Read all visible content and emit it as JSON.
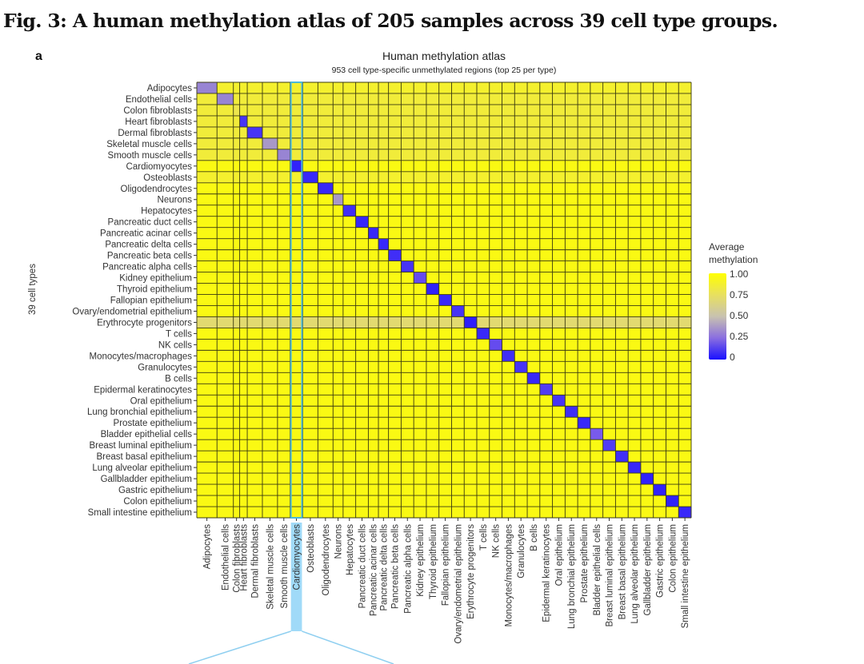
{
  "figure": {
    "title": "Fig. 3: A human methylation atlas of 205 samples across 39 cell type groups.",
    "panel_label": "a"
  },
  "chart_data": {
    "type": "heatmap",
    "title": "Human methylation atlas",
    "subtitle": "953 cell type-specific unmethylated regions (top 25 per type)",
    "ylabel": "39 cell types",
    "xlabel": "",
    "highlighted_column": "Cardiomyocytes",
    "highlight_color": "#4ab8d8",
    "rows": [
      "Adipocytes",
      "Endothelial cells",
      "Colon fibroblasts",
      "Heart fibroblasts",
      "Dermal fibroblasts",
      "Skeletal muscle cells",
      "Smooth muscle cells",
      "Cardiomyocytes",
      "Osteoblasts",
      "Oligodendrocytes",
      "Neurons",
      "Hepatocytes",
      "Pancreatic duct cells",
      "Pancreatic acinar cells",
      "Pancreatic delta cells",
      "Pancreatic beta cells",
      "Pancreatic alpha cells",
      "Kidney epithelium",
      "Thyroid epithelium",
      "Fallopian epithelium",
      "Ovary/endometrial epithelium",
      "Erythrocyte progenitors",
      "T cells",
      "NK cells",
      "Monocytes/macrophages",
      "Granulocytes",
      "B cells",
      "Epidermal keratinocytes",
      "Oral epithelium",
      "Lung bronchial epithelium",
      "Prostate epithelium",
      "Bladder epithelial cells",
      "Breast luminal epithelium",
      "Breast basal epithelium",
      "Lung alveolar epithelium",
      "Gallbladder epithelium",
      "Gastric epithelium",
      "Colon epithelium",
      "Small intestine epithelium"
    ],
    "columns": [
      "Adipocytes",
      "Endothelial cells",
      "Colon fibroblasts",
      "Heart fibroblasts",
      "Dermal fibroblasts",
      "Skeletal muscle cells",
      "Smooth muscle cells",
      "Cardiomyocytes",
      "Osteoblasts",
      "Oligodendrocytes",
      "Neurons",
      "Hepatocytes",
      "Pancreatic duct cells",
      "Pancreatic acinar cells",
      "Pancreatic delta cells",
      "Pancreatic beta cells",
      "Pancreatic alpha cells",
      "Kidney epithelium",
      "Thyroid epithelium",
      "Fallopian epithelium",
      "Ovary/endometrial epithelium",
      "Erythrocyte progenitors",
      "T cells",
      "NK cells",
      "Monocytes/macrophages",
      "Granulocytes",
      "B cells",
      "Epidermal keratinocytes",
      "Oral epithelium",
      "Lung bronchial epithelium",
      "Prostate epithelium",
      "Bladder epithelial cells",
      "Breast luminal epithelium",
      "Breast basal epithelium",
      "Lung alveolar epithelium",
      "Gallbladder epithelium",
      "Gastric epithelium",
      "Colon epithelium",
      "Small intestine epithelium"
    ],
    "diagonal_values": [
      0.35,
      0.35,
      0.8,
      0.12,
      0.12,
      0.4,
      0.35,
      0.06,
      0.08,
      0.08,
      0.4,
      0.1,
      0.08,
      0.08,
      0.08,
      0.1,
      0.12,
      0.2,
      0.06,
      0.08,
      0.12,
      0.05,
      0.08,
      0.2,
      0.1,
      0.12,
      0.08,
      0.15,
      0.12,
      0.1,
      0.08,
      0.25,
      0.15,
      0.1,
      0.08,
      0.06,
      0.06,
      0.06,
      0.08
    ],
    "off_diagonal_value": 0.95,
    "row_background_values": {
      "Erythrocyte progenitors": 0.7,
      "Adipocytes": 0.88,
      "Endothelial cells": 0.85,
      "Colon fibroblasts": 0.85,
      "Heart fibroblasts": 0.85,
      "Dermal fibroblasts": 0.85,
      "Skeletal muscle cells": 0.85,
      "Smooth muscle cells": 0.85,
      "Osteoblasts": 0.88
    },
    "colorbar": {
      "title": "Average methylation",
      "range": [
        0,
        1
      ],
      "ticks": [
        "1.00",
        "0.75",
        "0.50",
        "0.25",
        "0"
      ],
      "colors": [
        "#1a10ff",
        "#8a6ee0",
        "#c8c2b0",
        "#e8e060",
        "#ffff00"
      ]
    }
  }
}
